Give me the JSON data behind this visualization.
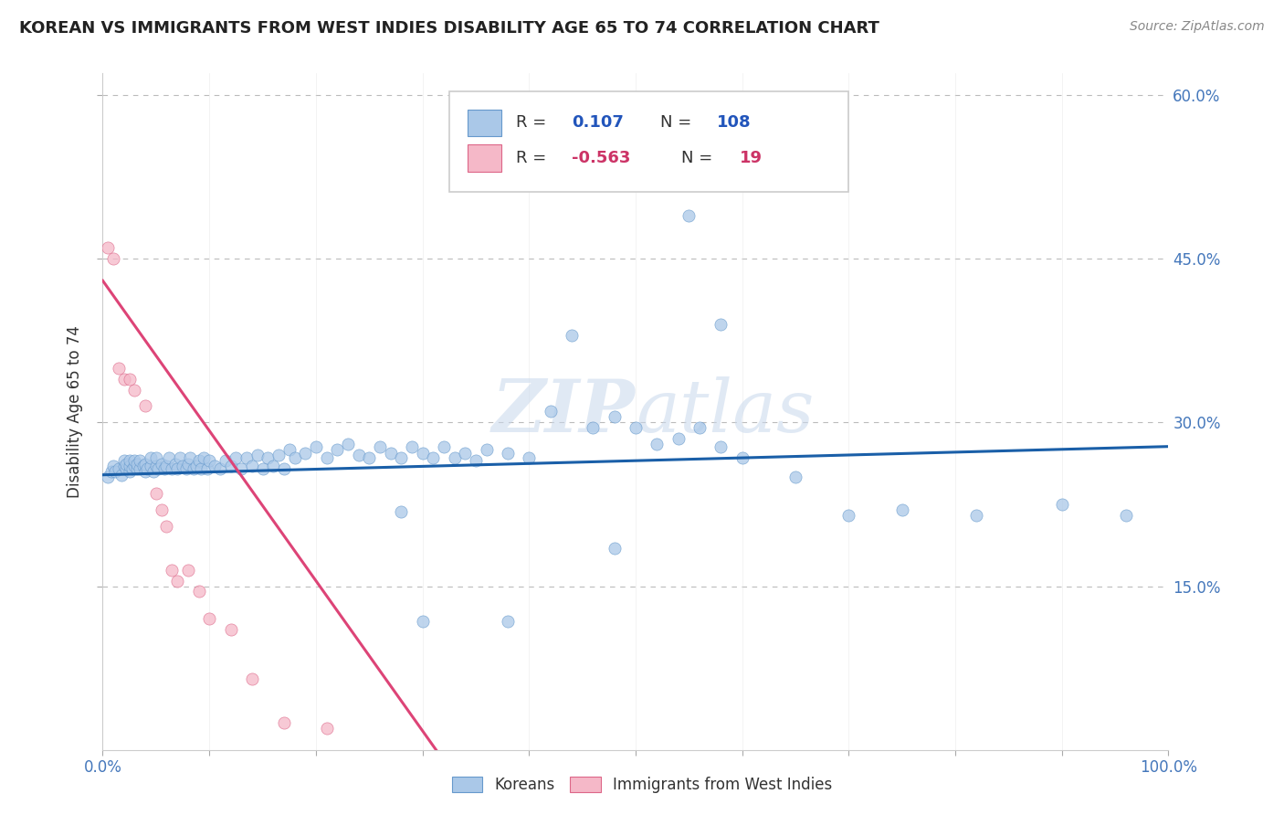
{
  "title": "KOREAN VS IMMIGRANTS FROM WEST INDIES DISABILITY AGE 65 TO 74 CORRELATION CHART",
  "source": "Source: ZipAtlas.com",
  "ylabel": "Disability Age 65 to 74",
  "watermark": "ZIPatlas",
  "koreans_R": 0.107,
  "koreans_N": 108,
  "westindies_R": -0.563,
  "westindies_N": 19,
  "xlim": [
    0.0,
    1.0
  ],
  "ylim": [
    0.0,
    0.62
  ],
  "yticks": [
    0.15,
    0.3,
    0.45,
    0.6
  ],
  "ytick_labels": [
    "15.0%",
    "30.0%",
    "45.0%",
    "60.0%"
  ],
  "blue_color": "#aac8e8",
  "blue_edge_color": "#6699cc",
  "blue_line_color": "#1a5fa8",
  "pink_color": "#f5b8c8",
  "pink_edge_color": "#dd6688",
  "pink_line_color": "#dd4477",
  "background_color": "#ffffff",
  "grid_color": "#bbbbbb",
  "koreans_x": [
    0.005,
    0.008,
    0.01,
    0.012,
    0.015,
    0.018,
    0.02,
    0.02,
    0.022,
    0.022,
    0.025,
    0.025,
    0.025,
    0.028,
    0.03,
    0.03,
    0.032,
    0.032,
    0.035,
    0.035,
    0.038,
    0.04,
    0.04,
    0.042,
    0.045,
    0.045,
    0.048,
    0.05,
    0.05,
    0.052,
    0.055,
    0.058,
    0.06,
    0.062,
    0.065,
    0.068,
    0.07,
    0.072,
    0.075,
    0.078,
    0.08,
    0.082,
    0.085,
    0.088,
    0.09,
    0.092,
    0.095,
    0.098,
    0.1,
    0.105,
    0.11,
    0.115,
    0.12,
    0.125,
    0.13,
    0.135,
    0.14,
    0.145,
    0.15,
    0.155,
    0.16,
    0.165,
    0.17,
    0.175,
    0.18,
    0.19,
    0.2,
    0.21,
    0.22,
    0.23,
    0.24,
    0.25,
    0.26,
    0.27,
    0.28,
    0.29,
    0.3,
    0.31,
    0.32,
    0.33,
    0.34,
    0.35,
    0.36,
    0.38,
    0.4,
    0.42,
    0.44,
    0.46,
    0.48,
    0.5,
    0.52,
    0.54,
    0.56,
    0.58,
    0.6,
    0.65,
    0.7,
    0.75,
    0.82,
    0.9,
    0.96,
    0.28,
    0.3,
    0.38,
    0.48,
    0.52,
    0.55,
    0.58
  ],
  "koreans_y": [
    0.25,
    0.255,
    0.26,
    0.255,
    0.258,
    0.252,
    0.26,
    0.265,
    0.258,
    0.262,
    0.255,
    0.26,
    0.265,
    0.258,
    0.26,
    0.265,
    0.258,
    0.262,
    0.258,
    0.265,
    0.26,
    0.255,
    0.262,
    0.258,
    0.26,
    0.268,
    0.255,
    0.26,
    0.268,
    0.258,
    0.262,
    0.258,
    0.26,
    0.268,
    0.258,
    0.262,
    0.258,
    0.268,
    0.26,
    0.258,
    0.262,
    0.268,
    0.258,
    0.26,
    0.265,
    0.258,
    0.268,
    0.258,
    0.265,
    0.26,
    0.258,
    0.265,
    0.26,
    0.268,
    0.258,
    0.268,
    0.26,
    0.27,
    0.258,
    0.268,
    0.26,
    0.27,
    0.258,
    0.275,
    0.268,
    0.272,
    0.278,
    0.268,
    0.275,
    0.28,
    0.27,
    0.268,
    0.278,
    0.272,
    0.268,
    0.278,
    0.272,
    0.268,
    0.278,
    0.268,
    0.272,
    0.265,
    0.275,
    0.272,
    0.268,
    0.31,
    0.38,
    0.295,
    0.305,
    0.295,
    0.28,
    0.285,
    0.295,
    0.278,
    0.268,
    0.25,
    0.215,
    0.22,
    0.215,
    0.225,
    0.215,
    0.218,
    0.118,
    0.118,
    0.185,
    0.545,
    0.49,
    0.39
  ],
  "westindies_x": [
    0.005,
    0.01,
    0.015,
    0.02,
    0.025,
    0.03,
    0.04,
    0.05,
    0.055,
    0.06,
    0.065,
    0.07,
    0.08,
    0.09,
    0.1,
    0.12,
    0.14,
    0.17,
    0.21
  ],
  "westindies_y": [
    0.46,
    0.45,
    0.35,
    0.34,
    0.34,
    0.33,
    0.315,
    0.235,
    0.22,
    0.205,
    0.165,
    0.155,
    0.165,
    0.145,
    0.12,
    0.11,
    0.065,
    0.025,
    0.02
  ],
  "k_line_x0": 0.0,
  "k_line_x1": 1.0,
  "k_line_y0": 0.252,
  "k_line_y1": 0.278,
  "w_line_x0": 0.0,
  "w_line_x1": 0.32,
  "w_line_y0": 0.43,
  "w_line_y1": -0.01
}
